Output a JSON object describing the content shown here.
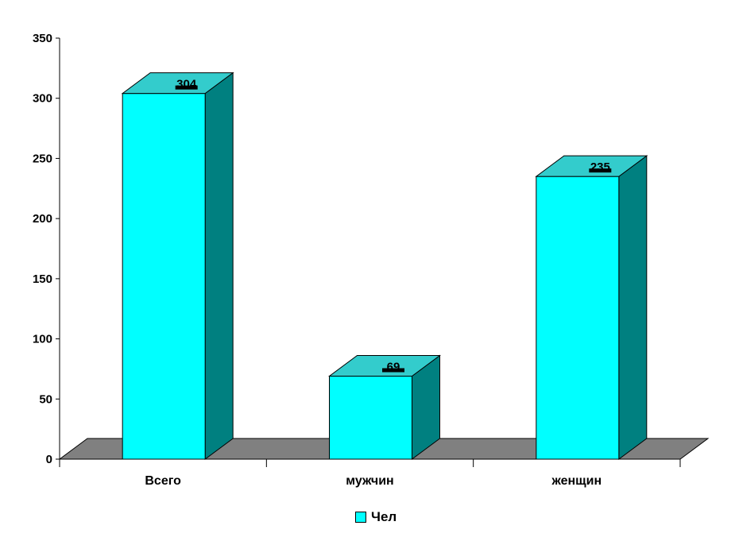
{
  "chart_data": {
    "type": "bar",
    "categories": [
      "Всего",
      "мужчин",
      "женщин"
    ],
    "series": [
      {
        "name": "Чел",
        "values": [
          304,
          69,
          235
        ]
      }
    ],
    "data_labels": [
      "304",
      "69",
      "235"
    ],
    "y_ticks": [
      "0",
      "50",
      "100",
      "150",
      "200",
      "250",
      "300",
      "350"
    ],
    "ylim": [
      0,
      350
    ],
    "grid": false,
    "legend_position": "bottom-center",
    "colors": {
      "bar_front": "#00FFFF",
      "bar_side": "#008080",
      "bar_top": "#33CCCC",
      "floor": "#808080"
    }
  }
}
